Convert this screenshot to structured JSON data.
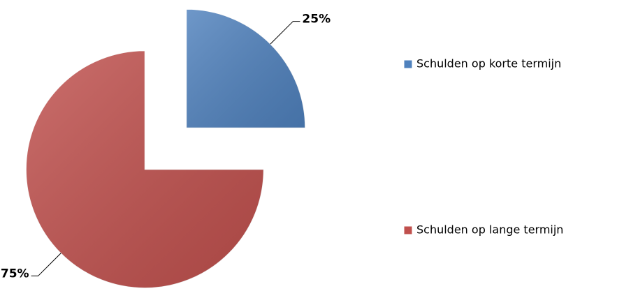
{
  "chart_data": {
    "type": "pie",
    "categories": [
      "Schulden op korte termijn",
      "Schulden op lange termijn"
    ],
    "values": [
      25,
      75
    ],
    "value_labels": [
      "25%",
      "75%"
    ],
    "colors": [
      "#4f81bd",
      "#c0504d"
    ],
    "legend": "right"
  }
}
